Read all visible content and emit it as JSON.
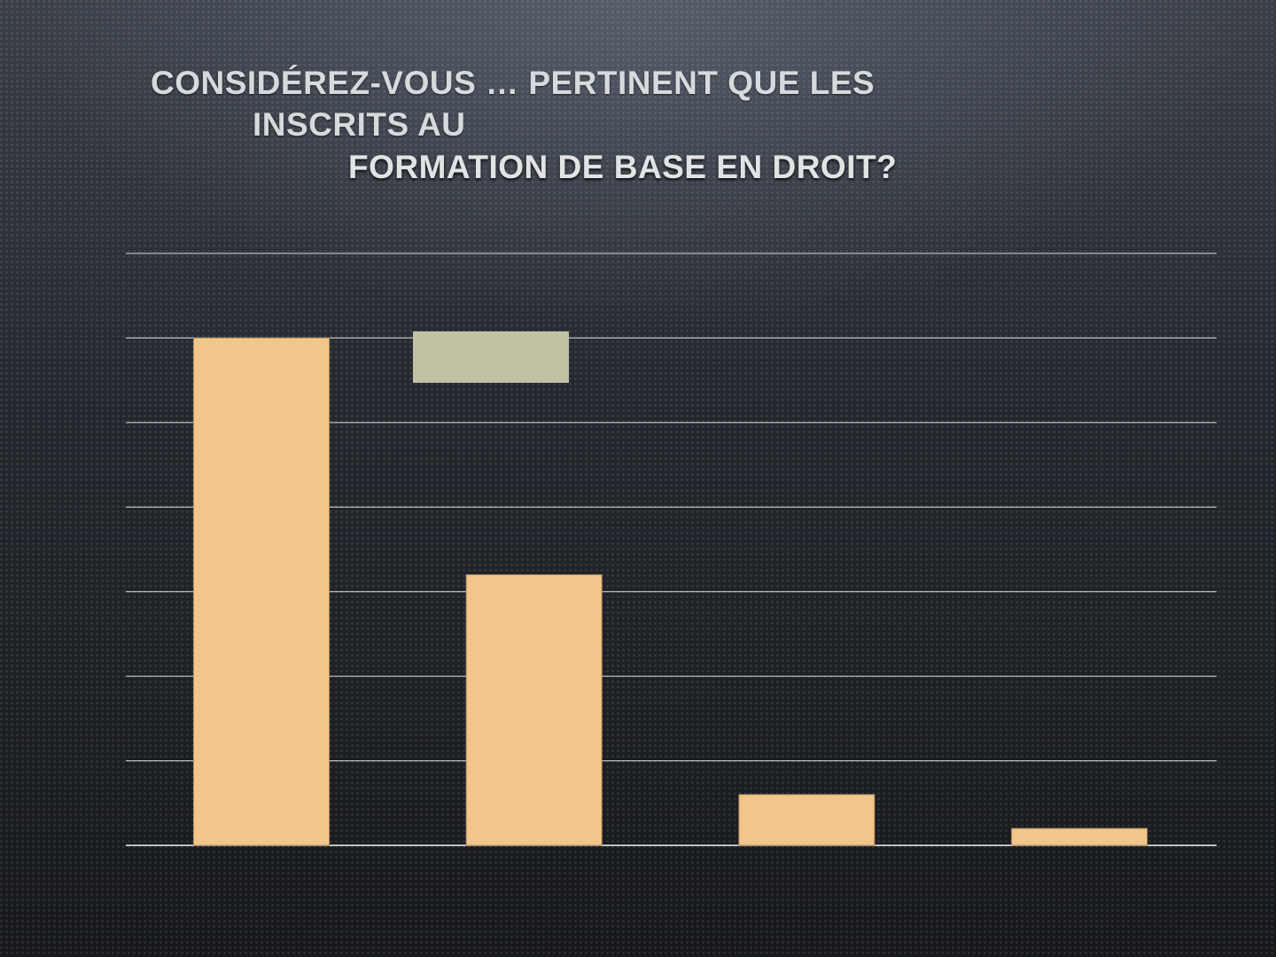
{
  "title": {
    "line1": "Considérez-vous … pertinent que les",
    "line2": "inscrits au",
    "line3": "formation de base en droit?"
  },
  "colors": {
    "bar": "#f1c68a",
    "bar_stroke": "#b08c5a",
    "legend_swatch": "#c1c1a4",
    "gridline": "#ffffff"
  },
  "chart_data": {
    "type": "bar",
    "categories": [
      "",
      "",
      "",
      ""
    ],
    "values": [
      60,
      32,
      6,
      2
    ],
    "ylim": [
      0,
      70
    ],
    "grid": true,
    "gridlines": [
      0,
      10,
      20,
      30,
      40,
      50,
      60,
      70
    ],
    "legend": "top",
    "legend_entries": [
      ""
    ],
    "xlabel": "",
    "ylabel": ""
  }
}
